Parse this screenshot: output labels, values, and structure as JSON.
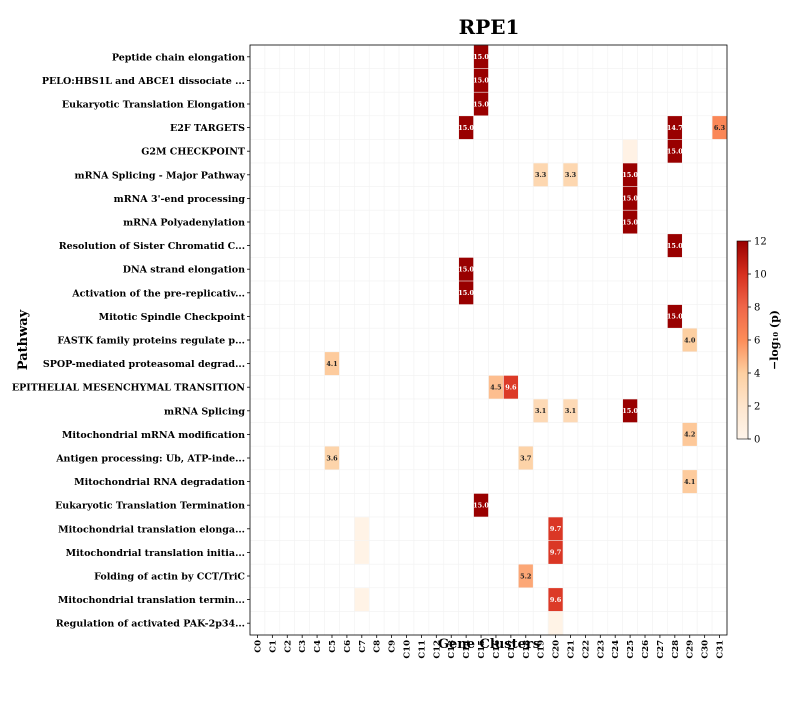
{
  "chart_data": {
    "type": "heatmap",
    "title": "RPE1",
    "xlabel": "Gene Clusters",
    "ylabel": "Pathway",
    "colorbar": {
      "label": "−log₁₀ (p)",
      "min": 0,
      "max": 12,
      "ticks": [
        "0",
        "2",
        "4",
        "6",
        "8",
        "10",
        "12"
      ]
    },
    "columns": [
      "C0",
      "C1",
      "C2",
      "C3",
      "C4",
      "C5",
      "C6",
      "C7",
      "C8",
      "C9",
      "C10",
      "C11",
      "C12",
      "C13",
      "C14",
      "C15",
      "C16",
      "C17",
      "C18",
      "C19",
      "C20",
      "C21",
      "C22",
      "C23",
      "C24",
      "C25",
      "C26",
      "C27",
      "C28",
      "C29",
      "C30",
      "C31"
    ],
    "rows": [
      "Peptide chain elongation",
      "PELO:HBS1L and ABCE1 dissociate ...",
      "Eukaryotic Translation Elongation",
      "E2F TARGETS",
      "G2M CHECKPOINT",
      "mRNA Splicing - Major Pathway",
      "mRNA 3'-end processing",
      "mRNA Polyadenylation",
      "Resolution of Sister Chromatid C...",
      "DNA strand elongation",
      "Activation of the pre-replicativ...",
      "Mitotic Spindle Checkpoint",
      "FASTK family proteins regulate p...",
      "SPOP-mediated proteasomal degrad...",
      "EPITHELIAL MESENCHYMAL TRANSITION",
      "mRNA Splicing",
      "Mitochondrial mRNA modification",
      "Antigen processing: Ub, ATP-inde...",
      "Mitochondrial RNA degradation",
      "Eukaryotic Translation Termination",
      "Mitochondrial translation elonga...",
      "Mitochondrial translation initia...",
      "Folding of actin by CCT/TriC",
      "Mitochondrial translation termin...",
      "Regulation of activated PAK-2p34..."
    ],
    "cells": [
      {
        "row": 0,
        "col": 15,
        "value": 15.0,
        "label": "15.0"
      },
      {
        "row": 1,
        "col": 15,
        "value": 15.0,
        "label": "15.0"
      },
      {
        "row": 2,
        "col": 15,
        "value": 15.0,
        "label": "15.0"
      },
      {
        "row": 3,
        "col": 14,
        "value": 15.0,
        "label": "15.0"
      },
      {
        "row": 3,
        "col": 28,
        "value": 14.7,
        "label": "14.7"
      },
      {
        "row": 3,
        "col": 31,
        "value": 6.3,
        "label": "6.3"
      },
      {
        "row": 4,
        "col": 25,
        "value": 0.4,
        "label": ""
      },
      {
        "row": 4,
        "col": 28,
        "value": 15.0,
        "label": "15.0"
      },
      {
        "row": 5,
        "col": 19,
        "value": 3.3,
        "label": "3.3"
      },
      {
        "row": 5,
        "col": 21,
        "value": 3.3,
        "label": "3.3"
      },
      {
        "row": 5,
        "col": 25,
        "value": 15.0,
        "label": "15.0"
      },
      {
        "row": 6,
        "col": 25,
        "value": 15.0,
        "label": "15.0"
      },
      {
        "row": 7,
        "col": 25,
        "value": 15.0,
        "label": "15.0"
      },
      {
        "row": 8,
        "col": 28,
        "value": 15.0,
        "label": "15.0"
      },
      {
        "row": 9,
        "col": 14,
        "value": 15.0,
        "label": "15.0"
      },
      {
        "row": 10,
        "col": 14,
        "value": 15.0,
        "label": "15.0"
      },
      {
        "row": 11,
        "col": 28,
        "value": 15.0,
        "label": "15.0"
      },
      {
        "row": 12,
        "col": 29,
        "value": 4.0,
        "label": "4.0"
      },
      {
        "row": 13,
        "col": 5,
        "value": 4.1,
        "label": "4.1"
      },
      {
        "row": 14,
        "col": 16,
        "value": 4.5,
        "label": "4.5"
      },
      {
        "row": 14,
        "col": 17,
        "value": 9.6,
        "label": "9.6"
      },
      {
        "row": 15,
        "col": 19,
        "value": 3.1,
        "label": "3.1"
      },
      {
        "row": 15,
        "col": 21,
        "value": 3.1,
        "label": "3.1"
      },
      {
        "row": 15,
        "col": 25,
        "value": 15.0,
        "label": "15.0"
      },
      {
        "row": 16,
        "col": 29,
        "value": 4.2,
        "label": "4.2"
      },
      {
        "row": 17,
        "col": 5,
        "value": 3.6,
        "label": "3.6"
      },
      {
        "row": 17,
        "col": 18,
        "value": 3.7,
        "label": "3.7"
      },
      {
        "row": 18,
        "col": 29,
        "value": 4.1,
        "label": "4.1"
      },
      {
        "row": 19,
        "col": 15,
        "value": 15.0,
        "label": "15.0"
      },
      {
        "row": 20,
        "col": 7,
        "value": 0.3,
        "label": ""
      },
      {
        "row": 20,
        "col": 20,
        "value": 9.7,
        "label": "9.7"
      },
      {
        "row": 21,
        "col": 7,
        "value": 0.3,
        "label": ""
      },
      {
        "row": 21,
        "col": 20,
        "value": 9.7,
        "label": "9.7"
      },
      {
        "row": 22,
        "col": 18,
        "value": 5.2,
        "label": "5.2"
      },
      {
        "row": 23,
        "col": 7,
        "value": 0.3,
        "label": ""
      },
      {
        "row": 23,
        "col": 20,
        "value": 9.6,
        "label": "9.6"
      },
      {
        "row": 24,
        "col": 20,
        "value": 0.3,
        "label": ""
      }
    ]
  }
}
